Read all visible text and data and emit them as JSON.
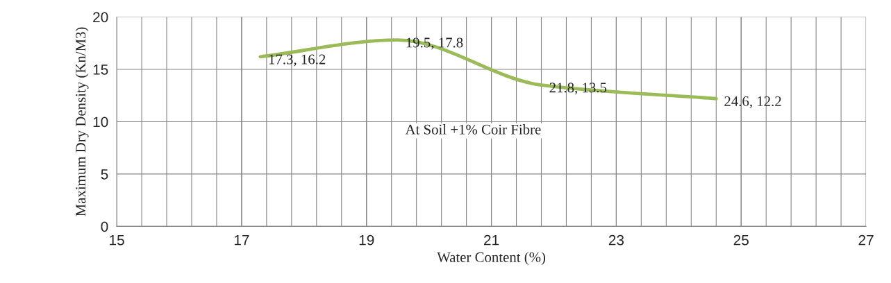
{
  "chart_data": {
    "type": "line",
    "xlabel": "Water Content (%)",
    "ylabel": "Maximum Dry Density (Kn/M3)",
    "x": [
      17.3,
      19.5,
      21.8,
      24.6
    ],
    "series": [
      {
        "color": "#9bbb59",
        "values": [
          16.2,
          17.8,
          13.5,
          12.2
        ],
        "value_labels": [
          "17.3, 16.2",
          "19.5, 17.8",
          "21.8, 13.5",
          "24.6, 12.2"
        ]
      }
    ],
    "xlim": [
      15,
      27
    ],
    "xticks": [
      15,
      17,
      19,
      21,
      23,
      25,
      27
    ],
    "ylim": [
      0,
      20
    ],
    "yticks": [
      0,
      5,
      10,
      15,
      20
    ],
    "grid": true,
    "marker": "none",
    "line_style": "solid",
    "annotations": [
      "At Soil +1% Coir Fibre"
    ]
  }
}
